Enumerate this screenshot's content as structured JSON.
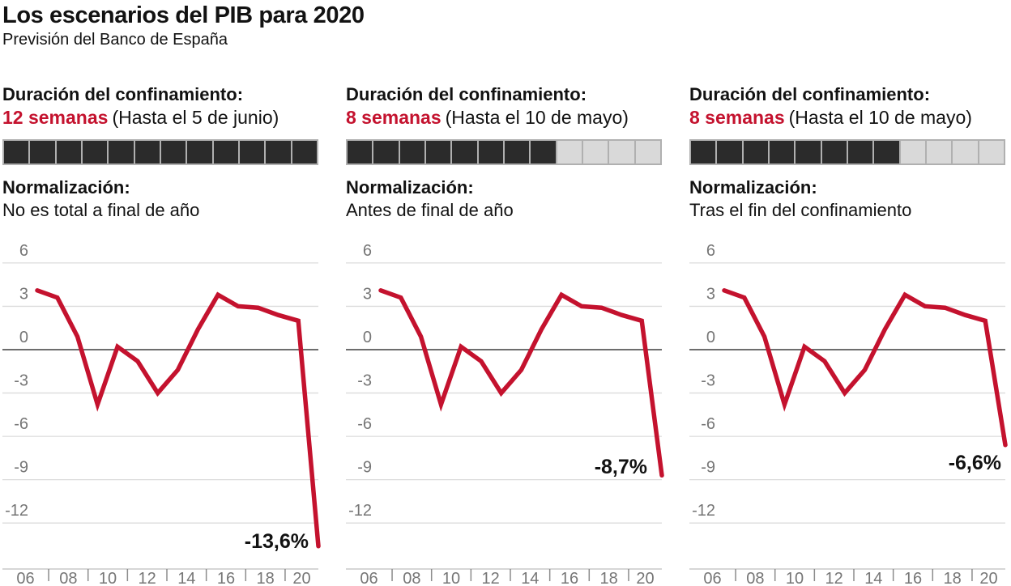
{
  "header": {
    "title": "Los escenarios del PIB para 2020",
    "subtitle": "Previsión del Banco de España"
  },
  "colors": {
    "accent_red": "#c4122e",
    "text_black": "#121212",
    "cell_filled": "#2b2b2b",
    "cell_empty": "#d9d9d9",
    "cell_border": "#b0b0b0",
    "gridline": "#dcdcdc",
    "zero_line": "#3d3d3d",
    "axis_line": "#bdbdbd",
    "axis_tick": "#8c8c8c",
    "axis_label": "#767676"
  },
  "panels": [
    {
      "duration_label": "Duración del confinamiento:",
      "duration_value": "12 semanas",
      "duration_note": "(Hasta el 5 de junio)",
      "weeks_filled": 12,
      "weeks_total": 12,
      "normalization_label": "Normalización:",
      "normalization_desc": "No es total a final de año",
      "value_2020_label": "-13,6%"
    },
    {
      "duration_label": "Duración del confinamiento:",
      "duration_value": "8 semanas",
      "duration_note": "(Hasta el 10 de mayo)",
      "weeks_filled": 8,
      "weeks_total": 12,
      "normalization_label": "Normalización:",
      "normalization_desc": "Antes de final de año",
      "value_2020_label": "-8,7%"
    },
    {
      "duration_label": "Duración del confinamiento:",
      "duration_value": "8 semanas",
      "duration_note": "(Hasta el 10 de mayo)",
      "weeks_filled": 8,
      "weeks_total": 12,
      "normalization_label": "Normalización:",
      "normalization_desc": "Tras el fin del confinamiento",
      "value_2020_label": "-6,6%"
    }
  ],
  "chart_data": [
    {
      "type": "line",
      "x": [
        2006,
        2007,
        2008,
        2009,
        2010,
        2011,
        2012,
        2013,
        2014,
        2015,
        2016,
        2017,
        2018,
        2019,
        2020
      ],
      "values": [
        4.1,
        3.6,
        0.9,
        -3.8,
        0.2,
        -0.8,
        -3.0,
        -1.4,
        1.4,
        3.8,
        3.0,
        2.9,
        2.4,
        2.0,
        -13.6
      ],
      "unit": "%",
      "ylim": [
        -12,
        6
      ],
      "yticks": [
        6,
        3,
        0,
        -3,
        -6,
        -9,
        -12
      ],
      "xtick_labels": [
        "06",
        "08",
        "10",
        "12",
        "14",
        "16",
        "18",
        "20"
      ],
      "grid": true,
      "annotation": {
        "text": "-13,6%",
        "x": 378,
        "y": 392
      }
    },
    {
      "type": "line",
      "x": [
        2006,
        2007,
        2008,
        2009,
        2010,
        2011,
        2012,
        2013,
        2014,
        2015,
        2016,
        2017,
        2018,
        2019,
        2020
      ],
      "values": [
        4.1,
        3.6,
        0.9,
        -3.8,
        0.2,
        -0.8,
        -3.0,
        -1.4,
        1.4,
        3.8,
        3.0,
        2.9,
        2.4,
        2.0,
        -8.7
      ],
      "unit": "%",
      "ylim": [
        -12,
        6
      ],
      "yticks": [
        6,
        3,
        0,
        -3,
        -6,
        -9,
        -12
      ],
      "xtick_labels": [
        "06",
        "08",
        "10",
        "12",
        "14",
        "16",
        "18",
        "20"
      ],
      "grid": true,
      "annotation": {
        "text": "-8,7%",
        "x": 372,
        "y": 300
      }
    },
    {
      "type": "line",
      "x": [
        2006,
        2007,
        2008,
        2009,
        2010,
        2011,
        2012,
        2013,
        2014,
        2015,
        2016,
        2017,
        2018,
        2019,
        2020
      ],
      "values": [
        4.1,
        3.6,
        0.9,
        -3.8,
        0.2,
        -0.8,
        -3.0,
        -1.4,
        1.4,
        3.8,
        3.0,
        2.9,
        2.4,
        2.0,
        -6.6
      ],
      "unit": "%",
      "ylim": [
        -12,
        6
      ],
      "yticks": [
        6,
        3,
        0,
        -3,
        -6,
        -9,
        -12
      ],
      "xtick_labels": [
        "06",
        "08",
        "10",
        "12",
        "14",
        "16",
        "18",
        "20"
      ],
      "grid": true,
      "annotation": {
        "text": "-6,6%",
        "x": 385,
        "y": 295
      }
    }
  ]
}
